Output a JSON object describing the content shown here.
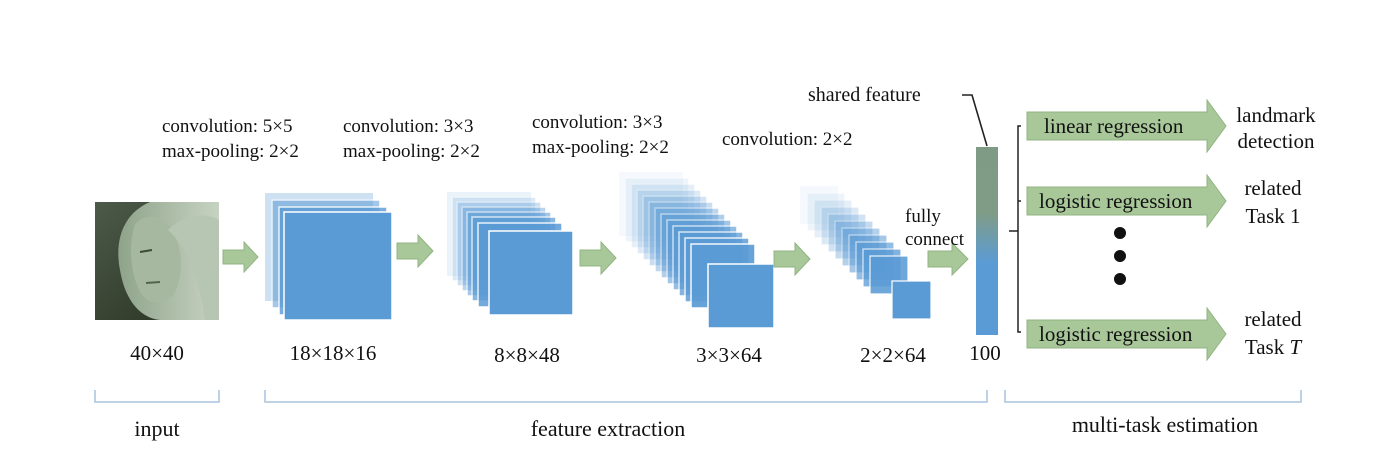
{
  "colors": {
    "layer_blue": "#5b9bd5",
    "arrow_green": "#a9c89a",
    "arrow_green_edge": "#90b482",
    "bracket_blue": "#a9c4de",
    "vector_top": "#7f9b85",
    "vector_bottom": "#5b9bd5"
  },
  "input": {
    "size_label": "40×40",
    "section_label": "input"
  },
  "layers": [
    {
      "ops": [
        "convolution: 5×5",
        "max-pooling: 2×2"
      ],
      "dim_label": "18×18×16"
    },
    {
      "ops": [
        "convolution: 3×3",
        "max-pooling: 2×2"
      ],
      "dim_label": "8×8×48"
    },
    {
      "ops": [
        "convolution: 3×3",
        "max-pooling: 2×2"
      ],
      "dim_label": "3×3×64"
    },
    {
      "ops": [
        "convolution: 2×2"
      ],
      "dim_label": "2×2×64"
    }
  ],
  "fully_connect": {
    "line1": "fully",
    "line2": "connect"
  },
  "shared_feature": {
    "label": "shared feature",
    "size_label": "100"
  },
  "sections": {
    "feature_extraction": "feature extraction",
    "multi_task": "multi-task estimation"
  },
  "tasks": [
    {
      "method": "linear regression",
      "out_line1": "landmark",
      "out_line2": "detection"
    },
    {
      "method": "logistic regression",
      "out_line1": "related",
      "out_line2": "Task 1"
    },
    {
      "method": "logistic regression",
      "out_line1": "related",
      "out_line2_prefix": "Task ",
      "out_line2_var": "T"
    }
  ]
}
